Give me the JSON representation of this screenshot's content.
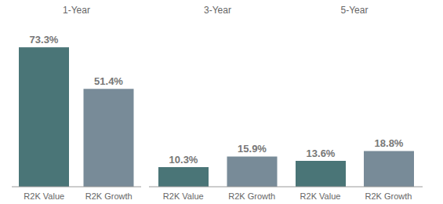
{
  "chart_data": [
    {
      "type": "bar",
      "title": "1-Year",
      "categories": [
        "R2K Value",
        "R2K Growth"
      ],
      "values": [
        73.3,
        51.4
      ],
      "value_labels": [
        "73.3%",
        "51.4%"
      ],
      "colors": [
        "#4a7577",
        "#788b98"
      ],
      "ylim": [
        0,
        80
      ],
      "data_labels": true,
      "tick_labels": "x",
      "grid": false
    },
    {
      "type": "bar",
      "title": "3-Year",
      "categories": [
        "R2K Value",
        "R2K Growth"
      ],
      "values": [
        10.3,
        15.9
      ],
      "value_labels": [
        "10.3%",
        "15.9%"
      ],
      "colors": [
        "#4a7577",
        "#788b98"
      ],
      "ylim": [
        0,
        80
      ],
      "data_labels": true,
      "tick_labels": "x",
      "grid": false
    },
    {
      "type": "bar",
      "title": "5-Year",
      "categories": [
        "R2K Value",
        "R2K Growth"
      ],
      "values": [
        13.6,
        18.8
      ],
      "value_labels": [
        "13.6%",
        "18.8%"
      ],
      "colors": [
        "#4a7577",
        "#788b98"
      ],
      "ylim": [
        0,
        80
      ],
      "data_labels": true,
      "tick_labels": "x",
      "grid": false
    }
  ]
}
